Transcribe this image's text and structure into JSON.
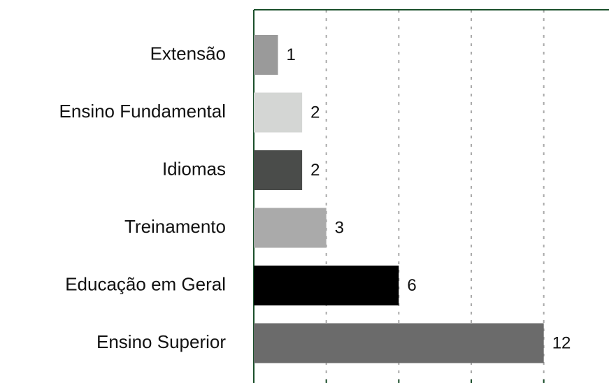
{
  "chart_data": {
    "type": "bar",
    "orientation": "horizontal",
    "categories": [
      "Extensão",
      "Ensino Fundamental",
      "Idiomas",
      "Treinamento",
      "Educação em Geral",
      "Ensino Superior"
    ],
    "values": [
      1,
      2,
      2,
      3,
      6,
      12
    ],
    "colors": [
      "#9a9a9a",
      "#d4d6d4",
      "#4a4c4a",
      "#aaaaaa",
      "#000000",
      "#6b6b6b"
    ],
    "xlim": [
      0,
      14.7
    ],
    "xticks": [
      0,
      3,
      6,
      9,
      12
    ],
    "grid": true
  }
}
